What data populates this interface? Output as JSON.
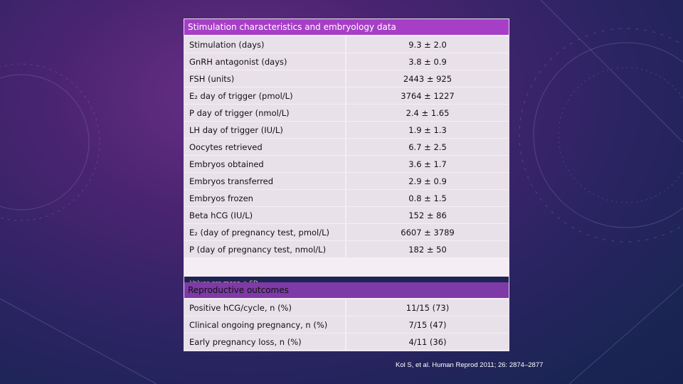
{
  "section1": {
    "title": "Stimulation characteristics and embryology data",
    "rows": [
      {
        "label": "Stimulation (days)",
        "value": "9.3 ± 2.0"
      },
      {
        "label": "GnRH antagonist (days)",
        "value": "3.8 ± 0.9"
      },
      {
        "label": "FSH (units)",
        "value": "2443 ± 925"
      },
      {
        "label": "E₂ day of trigger (pmol/L)",
        "value": "3764 ± 1227"
      },
      {
        "label": "P day of trigger (nmol/L)",
        "value": "2.4 ± 1.65"
      },
      {
        "label": "LH day of trigger (IU/L)",
        "value": "1.9 ± 1.3"
      },
      {
        "label": "Oocytes retrieved",
        "value": "6.7 ± 2.5"
      },
      {
        "label": "Embryos obtained",
        "value": "3.6 ± 1.7"
      },
      {
        "label": "Embryos transferred",
        "value": "2.9 ± 0.9"
      },
      {
        "label": "Embryos frozen",
        "value": "0.8 ± 1.5"
      },
      {
        "label": "Beta hCG (IU/L)",
        "value": "152 ± 86"
      },
      {
        "label": "E₂ (day of pregnancy test, pmol/L)",
        "value": "6607 ± 3789"
      },
      {
        "label": "P (day of pregnancy test, nmol/L)",
        "value": "182 ± 50"
      }
    ]
  },
  "note": "Values are mean ± SD",
  "section2": {
    "title": "Reproductive outcomes",
    "rows": [
      {
        "label": "Positive hCG/cycle, n (%)",
        "value": "11/15 (73)"
      },
      {
        "label": "Clinical ongoing pregnancy, n (%)",
        "value": "7/15 (47)"
      },
      {
        "label": "Early pregnancy loss, n (%)",
        "value": "4/11 (36)"
      }
    ]
  },
  "citation": "Kol S, et al. Human Reprod 2011; 26: 2874–2877"
}
